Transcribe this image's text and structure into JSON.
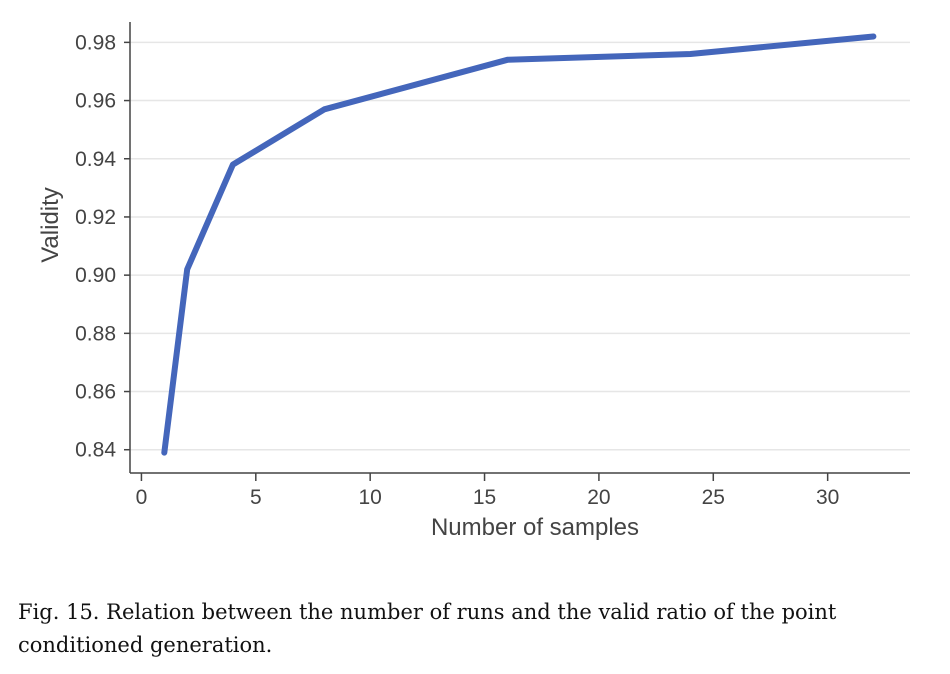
{
  "chart_data": {
    "type": "line",
    "title": "",
    "xlabel": "Number of samples",
    "ylabel": "Validity",
    "xlim": [
      -0.5,
      33.6
    ],
    "ylim": [
      0.832,
      0.987
    ],
    "xticks": [
      0,
      5,
      10,
      15,
      20,
      25,
      30
    ],
    "yticks": [
      0.84,
      0.86,
      0.88,
      0.9,
      0.92,
      0.94,
      0.96,
      0.98
    ],
    "ytick_labels": [
      "0.84",
      "0.86",
      "0.88",
      "0.90",
      "0.92",
      "0.94",
      "0.96",
      "0.98"
    ],
    "grid": "horizontal",
    "series": [
      {
        "name": "validity",
        "color": "#4466bb",
        "x": [
          1,
          2,
          4,
          8,
          16,
          24,
          32
        ],
        "y": [
          0.839,
          0.902,
          0.938,
          0.957,
          0.974,
          0.976,
          0.982
        ]
      }
    ]
  },
  "caption": "Fig. 15.  Relation between the number of runs and the valid ratio of the point conditioned generation."
}
